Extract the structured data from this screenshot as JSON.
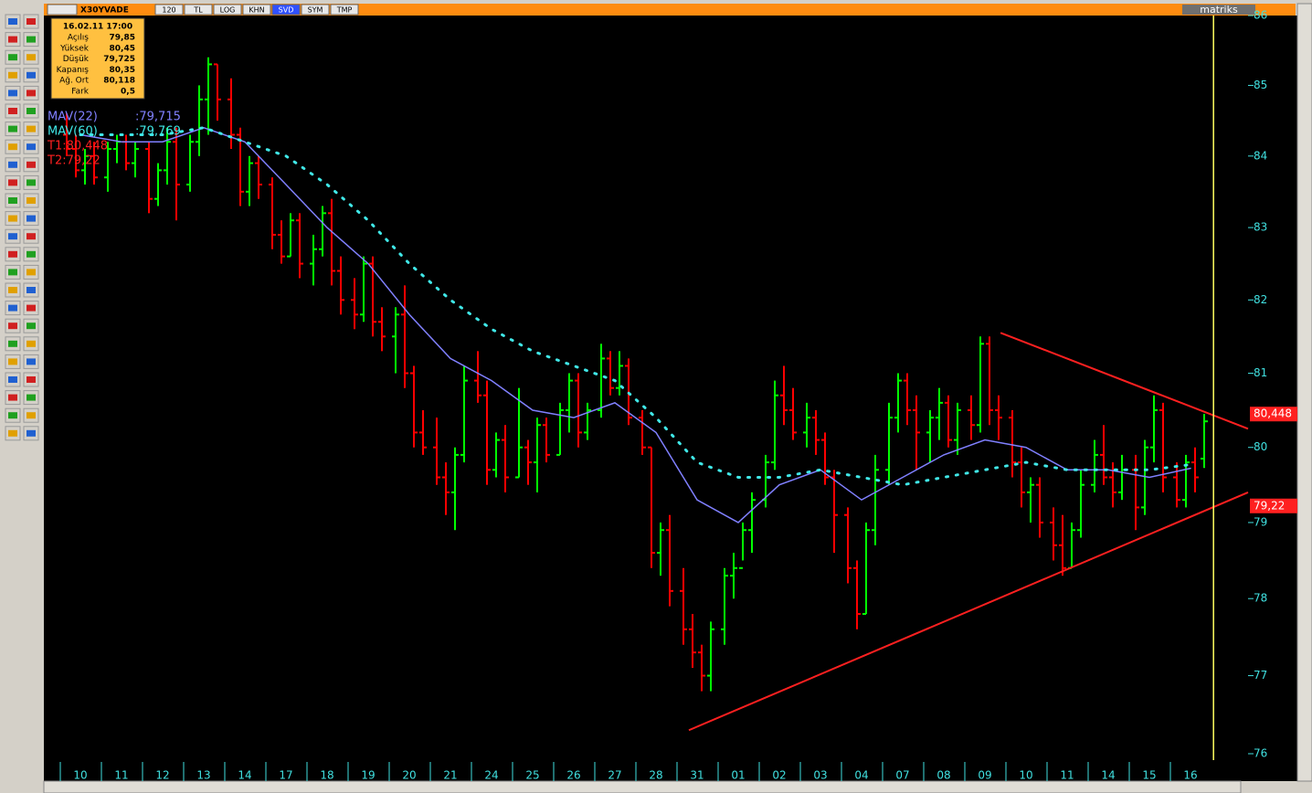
{
  "toolbar": {
    "symbol": "X30YVADE",
    "buttons": [
      "120",
      "TL",
      "LOG",
      "KHN",
      "SVD",
      "SYM",
      "TMP"
    ],
    "brand": "matriks"
  },
  "info_box": {
    "datetime": "16.02.11 17:00",
    "rows": [
      [
        "Açılış",
        "79,85"
      ],
      [
        "Yüksek",
        "80,45"
      ],
      [
        "Düşük",
        "79,725"
      ],
      [
        "Kapanış",
        "80,35"
      ],
      [
        "Ağ. Ort",
        "80,118"
      ],
      [
        "Fark",
        "0,5"
      ]
    ]
  },
  "chart_data": {
    "type": "ohlc",
    "log": true,
    "ylim": [
      76,
      86
    ],
    "yticks": [
      76,
      77,
      78,
      79,
      80,
      81,
      82,
      83,
      84,
      85,
      86
    ],
    "up_color": "#00ff00",
    "down_color": "#ff0000",
    "cursor": 27.56,
    "cursor_color": "#ffff60",
    "categories": [
      "10",
      "11",
      "12",
      "13",
      "14",
      "17",
      "18",
      "19",
      "20",
      "21",
      "24",
      "25",
      "26",
      "27",
      "28",
      "31",
      "01",
      "02",
      "03",
      "04",
      "07",
      "08",
      "09",
      "10",
      "11",
      "14",
      "15",
      "16"
    ],
    "bars": [
      [
        [
          84.3,
          84.6,
          84.0,
          84.1
        ],
        [
          84.1,
          84.3,
          83.7,
          83.8
        ],
        [
          83.8,
          84.1,
          83.6,
          84.0
        ],
        [
          84.0,
          84.2,
          83.6,
          83.7
        ]
      ],
      [
        [
          83.7,
          84.2,
          83.5,
          84.1
        ],
        [
          84.1,
          84.3,
          83.9,
          84.2
        ],
        [
          84.2,
          84.3,
          83.8,
          83.9
        ],
        [
          83.9,
          84.2,
          83.7,
          84.1
        ]
      ],
      [
        [
          84.1,
          84.2,
          83.2,
          83.4
        ],
        [
          83.4,
          83.9,
          83.3,
          83.8
        ],
        [
          83.8,
          84.4,
          83.6,
          84.2
        ],
        [
          84.2,
          84.4,
          83.1,
          83.6
        ]
      ],
      [
        [
          83.6,
          84.3,
          83.5,
          84.2
        ],
        [
          84.2,
          85.0,
          84.0,
          84.8
        ],
        [
          84.8,
          85.4,
          84.3,
          85.3
        ],
        [
          85.3,
          85.3,
          84.5,
          84.8
        ]
      ],
      [
        [
          84.8,
          85.1,
          84.1,
          84.3
        ],
        [
          84.3,
          84.4,
          83.3,
          83.5
        ],
        [
          83.5,
          84.0,
          83.3,
          83.9
        ],
        [
          83.9,
          84.0,
          83.4,
          83.6
        ]
      ],
      [
        [
          83.6,
          83.7,
          82.7,
          82.9
        ],
        [
          82.9,
          83.1,
          82.5,
          82.6
        ],
        [
          82.6,
          83.2,
          82.6,
          83.1
        ],
        [
          83.1,
          83.2,
          82.3,
          82.5
        ]
      ],
      [
        [
          82.5,
          82.9,
          82.2,
          82.7
        ],
        [
          82.7,
          83.3,
          82.6,
          83.2
        ],
        [
          83.2,
          83.4,
          82.2,
          82.4
        ],
        [
          82.4,
          82.6,
          81.8,
          82.0
        ]
      ],
      [
        [
          82.0,
          82.3,
          81.6,
          81.8
        ],
        [
          81.8,
          82.6,
          81.7,
          82.5
        ],
        [
          82.5,
          82.6,
          81.5,
          81.7
        ],
        [
          81.7,
          81.9,
          81.3,
          81.5
        ]
      ],
      [
        [
          81.5,
          81.9,
          81.0,
          81.8
        ],
        [
          81.8,
          82.2,
          80.8,
          81.0
        ],
        [
          81.0,
          81.1,
          80.0,
          80.2
        ],
        [
          80.2,
          80.5,
          79.9,
          80.0
        ]
      ],
      [
        [
          80.0,
          80.4,
          79.5,
          79.6
        ],
        [
          79.6,
          79.8,
          79.1,
          79.4
        ],
        [
          79.4,
          80.0,
          78.9,
          79.9
        ],
        [
          79.9,
          81.1,
          79.8,
          80.9
        ]
      ],
      [
        [
          80.9,
          81.3,
          80.6,
          80.7
        ],
        [
          80.7,
          80.9,
          79.5,
          79.7
        ],
        [
          79.7,
          80.2,
          79.6,
          80.1
        ],
        [
          80.1,
          80.3,
          79.4,
          79.6
        ]
      ],
      [
        [
          79.6,
          80.8,
          79.6,
          80.0
        ],
        [
          80.0,
          80.1,
          79.5,
          79.8
        ],
        [
          79.8,
          80.4,
          79.4,
          80.3
        ],
        [
          80.3,
          80.4,
          79.8,
          79.9
        ]
      ],
      [
        [
          79.9,
          80.6,
          79.9,
          80.5
        ],
        [
          80.5,
          81.0,
          80.2,
          80.9
        ],
        [
          80.9,
          81.0,
          80.0,
          80.2
        ],
        [
          80.2,
          80.6,
          80.1,
          80.5
        ]
      ],
      [
        [
          80.5,
          81.4,
          80.4,
          81.2
        ],
        [
          81.2,
          81.3,
          80.7,
          80.8
        ],
        [
          80.8,
          81.3,
          80.7,
          81.1
        ],
        [
          81.1,
          81.2,
          80.3,
          80.4
        ]
      ],
      [
        [
          80.4,
          80.5,
          79.9,
          80.0
        ],
        [
          80.0,
          80.0,
          78.4,
          78.6
        ],
        [
          78.6,
          79.0,
          78.3,
          78.9
        ],
        [
          78.9,
          79.1,
          77.9,
          78.1
        ]
      ],
      [
        [
          78.1,
          78.4,
          77.4,
          77.6
        ],
        [
          77.6,
          77.8,
          77.1,
          77.3
        ],
        [
          77.3,
          77.4,
          76.8,
          77.0
        ],
        [
          77.0,
          77.7,
          76.8,
          77.6
        ]
      ],
      [
        [
          77.6,
          78.4,
          77.4,
          78.3
        ],
        [
          78.3,
          78.6,
          78.0,
          78.4
        ],
        [
          78.4,
          79.0,
          78.5,
          78.9
        ],
        [
          78.9,
          79.4,
          78.6,
          79.3
        ]
      ],
      [
        [
          79.3,
          79.9,
          79.2,
          79.8
        ],
        [
          79.8,
          80.9,
          79.7,
          80.7
        ],
        [
          80.7,
          81.1,
          80.3,
          80.5
        ],
        [
          80.5,
          80.8,
          80.1,
          80.2
        ]
      ],
      [
        [
          80.2,
          80.6,
          80.0,
          80.4
        ],
        [
          80.4,
          80.5,
          79.9,
          80.1
        ],
        [
          80.1,
          80.2,
          79.5,
          79.6
        ],
        [
          79.6,
          79.7,
          78.6,
          79.1
        ]
      ],
      [
        [
          79.1,
          79.2,
          78.2,
          78.4
        ],
        [
          78.4,
          78.5,
          77.6,
          77.8
        ],
        [
          77.8,
          79.0,
          77.8,
          78.9
        ],
        [
          78.9,
          79.9,
          78.7,
          79.7
        ]
      ],
      [
        [
          79.7,
          80.6,
          79.5,
          80.4
        ],
        [
          80.4,
          81.0,
          80.2,
          80.9
        ],
        [
          80.9,
          81.0,
          80.3,
          80.5
        ],
        [
          80.5,
          80.7,
          79.7,
          80.2
        ]
      ],
      [
        [
          80.2,
          80.5,
          79.8,
          80.4
        ],
        [
          80.4,
          80.8,
          80.1,
          80.6
        ],
        [
          80.6,
          80.7,
          80.0,
          80.1
        ],
        [
          80.1,
          80.6,
          79.9,
          80.5
        ]
      ],
      [
        [
          80.5,
          80.7,
          80.1,
          80.3
        ],
        [
          80.3,
          81.5,
          80.2,
          81.4
        ],
        [
          81.4,
          81.5,
          80.3,
          80.5
        ],
        [
          80.5,
          80.7,
          80.1,
          80.4
        ]
      ],
      [
        [
          80.4,
          80.5,
          79.6,
          79.8
        ],
        [
          79.8,
          80.0,
          79.2,
          79.4
        ],
        [
          79.4,
          79.6,
          79.0,
          79.5
        ],
        [
          79.5,
          79.6,
          78.8,
          79.0
        ]
      ],
      [
        [
          79.0,
          79.2,
          78.5,
          78.7
        ],
        [
          78.7,
          79.1,
          78.3,
          78.4
        ],
        [
          78.4,
          79.0,
          78.4,
          78.9
        ],
        [
          78.9,
          79.7,
          78.8,
          79.5
        ]
      ],
      [
        [
          79.5,
          80.1,
          79.4,
          79.9
        ],
        [
          79.9,
          80.3,
          79.5,
          79.6
        ],
        [
          79.6,
          79.8,
          79.2,
          79.4
        ],
        [
          79.4,
          79.9,
          79.3,
          79.7
        ]
      ],
      [
        [
          79.7,
          79.9,
          78.9,
          79.2
        ],
        [
          79.2,
          80.1,
          79.1,
          80.0
        ],
        [
          80.0,
          80.7,
          79.8,
          80.5
        ],
        [
          80.5,
          80.6,
          79.4,
          79.6
        ]
      ],
      [
        [
          79.6,
          79.8,
          79.2,
          79.3
        ],
        [
          79.3,
          79.9,
          79.2,
          79.8
        ],
        [
          79.8,
          80.0,
          79.4,
          79.6
        ],
        [
          79.85,
          80.45,
          79.725,
          80.35
        ]
      ]
    ],
    "series": [
      {
        "name": "MAV(22)",
        "label": ":79,715",
        "color": "#8080ff",
        "style": "solid",
        "values": [
          84.3,
          84.2,
          84.2,
          84.4,
          84.2,
          83.6,
          83.0,
          82.5,
          81.8,
          81.2,
          80.9,
          80.5,
          80.4,
          80.6,
          80.2,
          79.3,
          79.0,
          79.5,
          79.7,
          79.3,
          79.6,
          79.9,
          80.1,
          80.0,
          79.7,
          79.7,
          79.6,
          79.72
        ]
      },
      {
        "name": "MAV(60)",
        "label": ":79,769",
        "color": "#40e8e8",
        "style": "dotted",
        "values": [
          84.3,
          84.3,
          84.3,
          84.4,
          84.2,
          84.0,
          83.6,
          83.1,
          82.5,
          82.0,
          81.6,
          81.3,
          81.1,
          80.9,
          80.4,
          79.8,
          79.6,
          79.6,
          79.7,
          79.6,
          79.5,
          79.6,
          79.7,
          79.8,
          79.7,
          79.7,
          79.7,
          79.77
        ]
      }
    ],
    "trendlines": [
      {
        "label": "T1:80,448",
        "axis_label": "80,448",
        "value": 80.448,
        "color": "#ff2020",
        "from": [
          22.38,
          81.55
        ],
        "to": [
          28.5,
          80.25
        ]
      },
      {
        "label": "T2:79,22",
        "axis_label": "79,22",
        "value": 79.22,
        "color": "#ff2020",
        "from": [
          14.8,
          76.3
        ],
        "to": [
          28.5,
          79.4
        ]
      }
    ]
  }
}
